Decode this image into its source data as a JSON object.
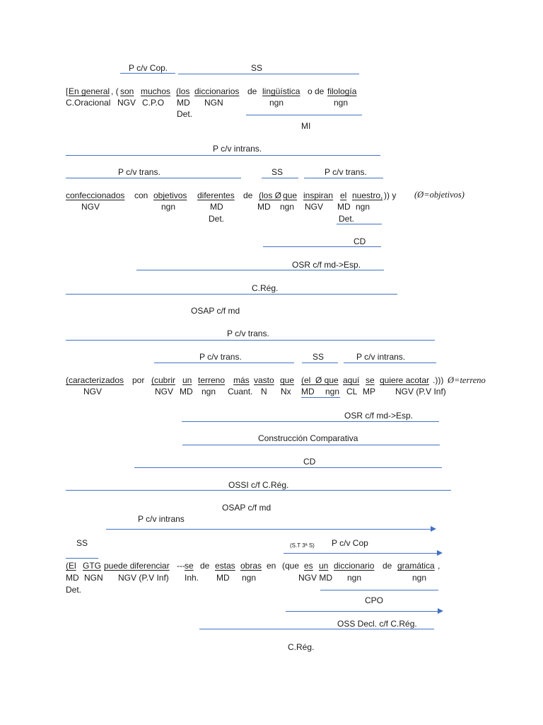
{
  "block1": {
    "label_pcv_cop": "P c/v Cop.",
    "label_ss": "SS",
    "sentence": {
      "bracket": "[",
      "en_general": "En general",
      "comma_paren": ", (",
      "son": "son",
      "muchos": "muchos",
      "paren_los": "(los",
      "diccionarios": "diccionarios",
      "de1": "de",
      "linguistica": "lingüística",
      "o_de": "o de",
      "filologia": "filología"
    },
    "tags": {
      "c_oracional": "C.Oracional",
      "ngv": "NGV",
      "cpo": "C.P.O",
      "md": "MD",
      "ngn_caps": "NGN",
      "ngn1": "ngn",
      "ngn2": "ngn",
      "det": "Det."
    },
    "label_mi": "MI"
  },
  "block2": {
    "label_pcv_intrans": "P c/v intrans.",
    "label_pcv_trans1": "P c/v trans.",
    "label_ss": "SS",
    "label_pcv_trans2": "P c/v trans.",
    "sentence": {
      "confeccionados": "confeccionados",
      "con": "con",
      "objetivos": "objetivos",
      "diferentes": "diferentes",
      "de": "de",
      "paren_los_phi": "(los Ø",
      "que": "que",
      "inspiran": "inspiran",
      "el": "el",
      "nuestro": "nuestro,",
      "close": ")) y",
      "note": "(Ø=objetivos)"
    },
    "tags": {
      "ngv1": "NGV",
      "ngn1": "ngn",
      "md1": "MD",
      "det1": "Det.",
      "md2": "MD",
      "ngn2": "ngn",
      "ngv2": "NGV",
      "md3": "MD",
      "ngn3": "ngn",
      "det2": "Det."
    },
    "label_cd": "CD",
    "label_osr": "OSR c/f md->Esp.",
    "label_creg": "C.Rég.",
    "label_osap": "OSAP c/f md"
  },
  "block3": {
    "label_pcv_trans_top": "P c/v trans.",
    "label_pcv_trans": "P c/v trans.",
    "label_ss": "SS",
    "label_pcv_intrans": "P c/v intrans.",
    "sentence": {
      "caracterizados": "(caracterizados",
      "por": "por",
      "cubrir": "(cubrir",
      "un": "un",
      "terreno": "terreno",
      "mas": "más",
      "vasto": "vasto",
      "que": "que",
      "el_phi": "(el  Ø que",
      "aqui": "aquí",
      "se": "se",
      "quiere": "quiere acotar",
      "close": ".))) ",
      "note": "Ø=terreno"
    },
    "tags": {
      "ngv1": "NGV",
      "ngv2": "NGV",
      "md1": "MD",
      "ngn1": "ngn",
      "cuant": "Cuant.",
      "n": "N",
      "nx": "Nx",
      "md2": "MD",
      "ngn2": "ngn",
      "cl": "CL",
      "mp": "MP",
      "ngv_inf": "NGV (P.V Inf)"
    },
    "label_osr": "OSR c/f md->Esp.",
    "label_comparativa": "Construcción Comparativa",
    "label_cd": "CD",
    "label_ossi": "OSSI c/f C.Rég.",
    "label_osap": "OSAP c/f md"
  },
  "block4": {
    "label_pcv_intrans": "P c/v intrans",
    "label_ss": "SS",
    "label_st": "(S.T 3ª S)",
    "label_pcv_cop": "P c/v Cop",
    "sentence": {
      "el": "(El",
      "gtg": "GTG",
      "puede": "puede diferenciar",
      "dashes": "---",
      "se": "se",
      "de": "de",
      "estas": "estas",
      "obras": "obras",
      "en": "en",
      "que": "(que",
      "es": "es",
      "un": "un",
      "diccionario": "diccionario",
      "de2": "de",
      "gramatica": "gramática",
      "comma": ","
    },
    "tags": {
      "md1": "MD",
      "ngn1": "NGN",
      "ngv_inf": "NGV (P.V Inf)",
      "inh": "Inh.",
      "md2": "MD",
      "ngn2": "ngn",
      "ngv_md": "NGV MD",
      "ngn3": "ngn",
      "ngn4": "ngn",
      "det": "Det."
    },
    "label_cpo": "CPO",
    "label_oss_decl": "OSS Decl. c/f C.Rég.",
    "label_creg": "C.Rég."
  },
  "colors": {
    "line": "#4472c4",
    "text": "#1a1a1a"
  }
}
